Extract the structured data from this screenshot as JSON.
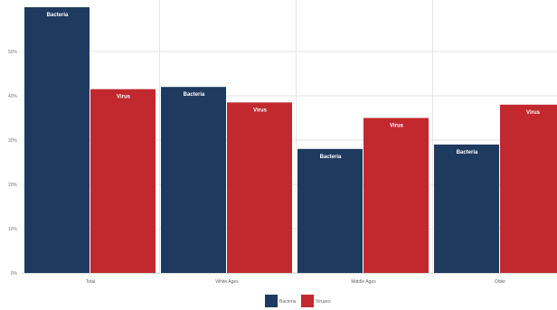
{
  "chart_data": {
    "type": "bar",
    "title": "",
    "xlabel": "",
    "ylabel": "",
    "categories": [
      "Total",
      "White Ages",
      "Middle Ages",
      "Older"
    ],
    "ylim": [
      0,
      60
    ],
    "yticks": [
      0,
      10,
      20,
      30,
      40,
      50
    ],
    "ytick_labels": [
      "0%",
      "10%",
      "20%",
      "30%",
      "40%",
      "50%"
    ],
    "grid": true,
    "legend_position": "bottom",
    "series": [
      {
        "name": "Bacteria",
        "color": "#1f3a5f",
        "values": [
          60,
          42,
          28,
          29
        ],
        "label": "Bacteria"
      },
      {
        "name": "Viruses",
        "color": "#c1292e",
        "values": [
          41.5,
          38.5,
          35,
          38
        ],
        "label": "Virus"
      }
    ]
  }
}
